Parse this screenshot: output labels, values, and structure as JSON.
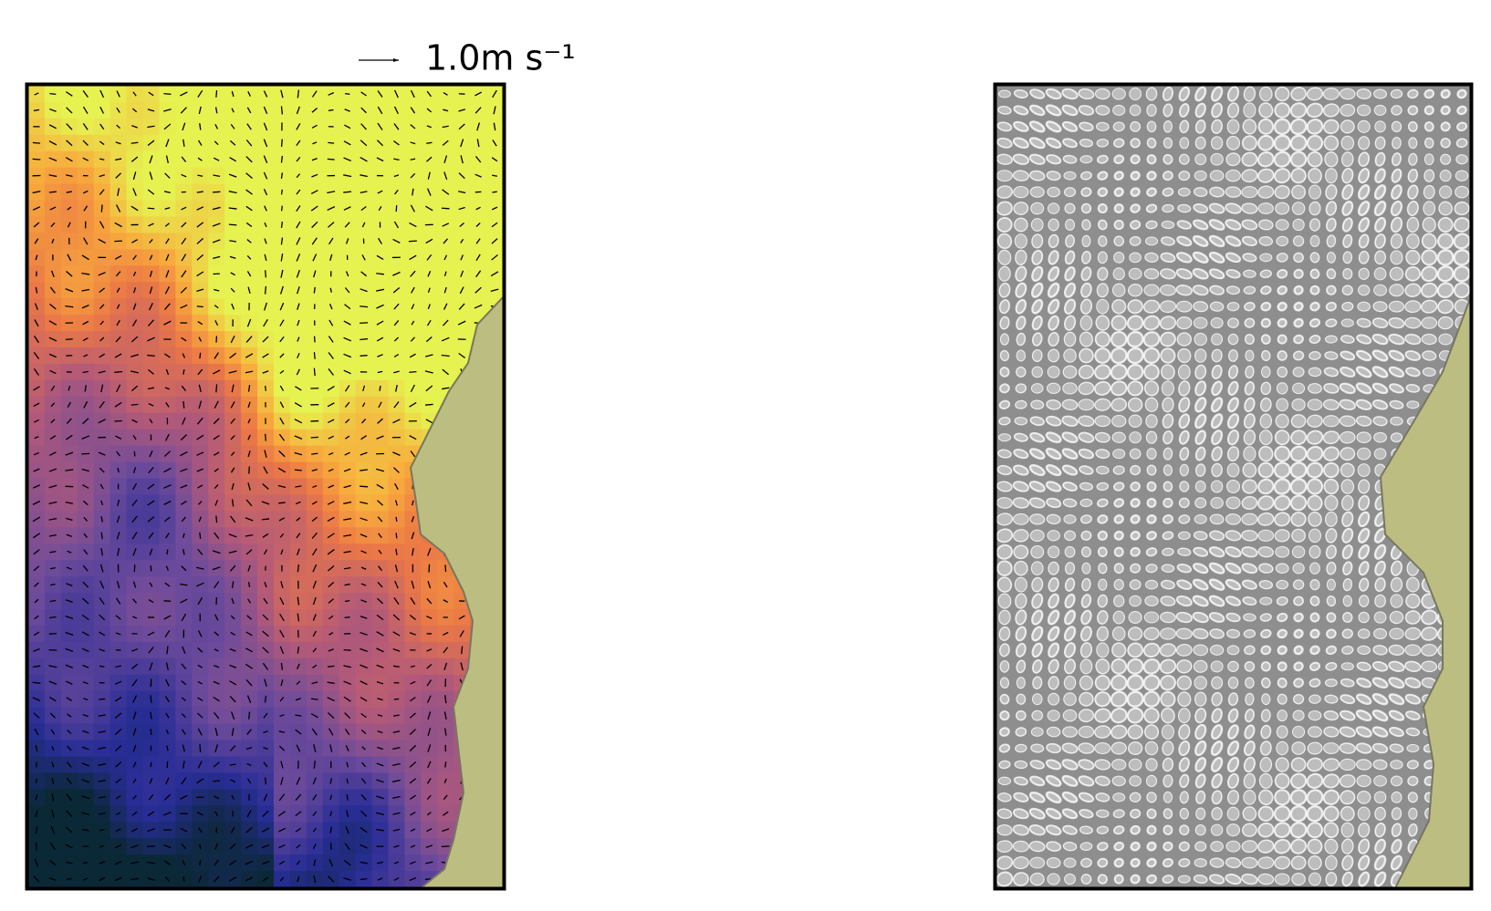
{
  "chart_data": {
    "type": "quiver",
    "key": {
      "value": 1.0,
      "label": "1.0m s⁻¹"
    }
  }
}
